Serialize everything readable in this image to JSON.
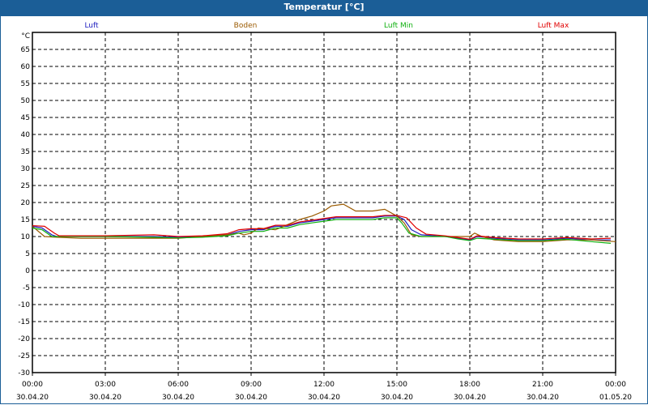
{
  "chart_data": {
    "type": "line",
    "title": "Temperatur [°C]",
    "ylabel": "°C",
    "ylim": [
      -30,
      70
    ],
    "yticks": [
      65,
      60,
      55,
      50,
      45,
      40,
      35,
      30,
      25,
      20,
      15,
      10,
      5,
      0,
      -5,
      -10,
      -15,
      -20,
      -25,
      -30
    ],
    "xlim": [
      0,
      24
    ],
    "xticks": [
      {
        "h": 0,
        "time": "00:00",
        "date": "30.04.20"
      },
      {
        "h": 3,
        "time": "03:00",
        "date": "30.04.20"
      },
      {
        "h": 6,
        "time": "06:00",
        "date": "30.04.20"
      },
      {
        "h": 9,
        "time": "09:00",
        "date": "30.04.20"
      },
      {
        "h": 12,
        "time": "12:00",
        "date": "30.04.20"
      },
      {
        "h": 15,
        "time": "15:00",
        "date": "30.04.20"
      },
      {
        "h": 18,
        "time": "18:00",
        "date": "30.04.20"
      },
      {
        "h": 21,
        "time": "21:00",
        "date": "30.04.20"
      },
      {
        "h": 24,
        "time": "00:00",
        "date": "01.05.20"
      }
    ],
    "grid": true,
    "legend_position": "top",
    "series": [
      {
        "name": "Luft",
        "color": "#2020c0",
        "points": [
          [
            0,
            13
          ],
          [
            0.4,
            12.5
          ],
          [
            0.8,
            10.5
          ],
          [
            1,
            10
          ],
          [
            3,
            10
          ],
          [
            5,
            10
          ],
          [
            6,
            9.8
          ],
          [
            7,
            10
          ],
          [
            8,
            10.5
          ],
          [
            8.5,
            11.5
          ],
          [
            9,
            12
          ],
          [
            9.5,
            12
          ],
          [
            10,
            13
          ],
          [
            10.5,
            13
          ],
          [
            11,
            14
          ],
          [
            11.5,
            14.5
          ],
          [
            12,
            15
          ],
          [
            12.5,
            15.5
          ],
          [
            14,
            15.5
          ],
          [
            14.5,
            16
          ],
          [
            15,
            16
          ],
          [
            15.3,
            15
          ],
          [
            15.6,
            12
          ],
          [
            16,
            10.5
          ],
          [
            17,
            10
          ],
          [
            17.5,
            9.5
          ],
          [
            18,
            9
          ],
          [
            18.3,
            10
          ],
          [
            19,
            9.5
          ],
          [
            20,
            9
          ],
          [
            21,
            9
          ],
          [
            22,
            9.5
          ],
          [
            23,
            9
          ],
          [
            23.8,
            9
          ]
        ]
      },
      {
        "name": "Boden",
        "color": "#9a5a00",
        "points": [
          [
            0,
            13
          ],
          [
            0.5,
            10
          ],
          [
            1,
            9.8
          ],
          [
            2,
            9.5
          ],
          [
            6,
            9.5
          ],
          [
            7,
            10
          ],
          [
            8,
            10.5
          ],
          [
            8.5,
            11
          ],
          [
            8.7,
            10.5
          ],
          [
            9,
            11
          ],
          [
            9.3,
            12.5
          ],
          [
            10,
            12
          ],
          [
            10.5,
            13.5
          ],
          [
            11,
            15
          ],
          [
            11.5,
            16
          ],
          [
            12,
            17.5
          ],
          [
            12.3,
            19
          ],
          [
            12.8,
            19.5
          ],
          [
            13.3,
            17.5
          ],
          [
            14,
            17.5
          ],
          [
            14.5,
            18
          ],
          [
            15,
            16
          ],
          [
            15.3,
            14
          ],
          [
            15.6,
            10.5
          ],
          [
            16,
            10
          ],
          [
            18,
            10
          ],
          [
            18.2,
            11
          ],
          [
            18.5,
            10
          ],
          [
            19,
            9
          ],
          [
            20,
            8.5
          ],
          [
            21,
            8.5
          ],
          [
            22,
            9
          ],
          [
            23,
            9
          ],
          [
            24,
            8.5
          ]
        ]
      },
      {
        "name": "Luft Min",
        "color": "#10b010",
        "points": [
          [
            0,
            12.5
          ],
          [
            0.4,
            12
          ],
          [
            0.8,
            10
          ],
          [
            1,
            10
          ],
          [
            3,
            10
          ],
          [
            5,
            9.8
          ],
          [
            6,
            9.6
          ],
          [
            7,
            9.8
          ],
          [
            8,
            10.2
          ],
          [
            8.5,
            11
          ],
          [
            9,
            11.5
          ],
          [
            9.5,
            11.5
          ],
          [
            10,
            12.5
          ],
          [
            10.5,
            12.5
          ],
          [
            11,
            13.5
          ],
          [
            11.5,
            14
          ],
          [
            12,
            14.5
          ],
          [
            12.5,
            15
          ],
          [
            14,
            15
          ],
          [
            14.5,
            15.5
          ],
          [
            15,
            15.5
          ],
          [
            15.2,
            14
          ],
          [
            15.5,
            11
          ],
          [
            16,
            10
          ],
          [
            17,
            10
          ],
          [
            17.5,
            9.3
          ],
          [
            18,
            8.8
          ],
          [
            18.3,
            9.5
          ],
          [
            19,
            9.2
          ],
          [
            20,
            8.8
          ],
          [
            21,
            8.8
          ],
          [
            22,
            9.2
          ],
          [
            23,
            8.5
          ],
          [
            23.8,
            8
          ]
        ]
      },
      {
        "name": "Luft Max",
        "color": "#e00000",
        "points": [
          [
            0,
            13.2
          ],
          [
            0.5,
            13
          ],
          [
            0.9,
            11
          ],
          [
            1.1,
            10.2
          ],
          [
            3,
            10.2
          ],
          [
            5,
            10.5
          ],
          [
            6,
            10
          ],
          [
            7,
            10.2
          ],
          [
            8,
            10.8
          ],
          [
            8.5,
            12
          ],
          [
            9,
            12.3
          ],
          [
            9.5,
            12.3
          ],
          [
            10,
            13.3
          ],
          [
            10.5,
            13.3
          ],
          [
            11,
            14.3
          ],
          [
            11.5,
            14.8
          ],
          [
            12,
            15.3
          ],
          [
            12.5,
            15.8
          ],
          [
            14,
            15.8
          ],
          [
            14.5,
            16.2
          ],
          [
            15,
            16.2
          ],
          [
            15.4,
            15.5
          ],
          [
            15.8,
            12.5
          ],
          [
            16.2,
            10.7
          ],
          [
            17,
            10.2
          ],
          [
            17.5,
            9.7
          ],
          [
            18,
            9.2
          ],
          [
            18.3,
            10.2
          ],
          [
            19,
            9.7
          ],
          [
            20,
            9.3
          ],
          [
            21,
            9.3
          ],
          [
            22,
            9.7
          ],
          [
            23,
            9.3
          ],
          [
            23.8,
            9.5
          ]
        ]
      }
    ]
  }
}
